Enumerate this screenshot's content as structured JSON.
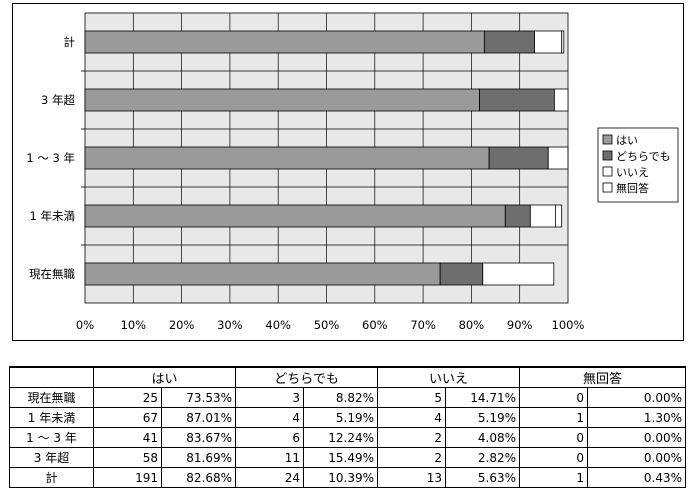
{
  "chart_data": {
    "type": "bar",
    "orientation": "horizontal",
    "stacked": true,
    "categories": [
      "計",
      "3 年超",
      "1 〜 3 年",
      "1 年未満",
      "現在無職"
    ],
    "series": [
      {
        "name": "はい",
        "values": [
          82.68,
          81.69,
          83.67,
          87.01,
          73.53
        ],
        "color": "#9a9a9a"
      },
      {
        "name": "どちらでも",
        "values": [
          10.39,
          15.49,
          12.24,
          5.19,
          8.82
        ],
        "color": "#6e6e6e"
      },
      {
        "name": "いいえ",
        "values": [
          5.63,
          2.82,
          4.08,
          5.19,
          14.71
        ],
        "color": "#ffffff"
      },
      {
        "name": "無回答",
        "values": [
          0.43,
          0.0,
          0.0,
          1.3,
          0.0
        ],
        "color": "#ffffff"
      }
    ],
    "xlim": [
      0,
      100
    ],
    "x_ticks": [
      "0%",
      "10%",
      "20%",
      "30%",
      "40%",
      "50%",
      "60%",
      "70%",
      "80%",
      "90%",
      "100%"
    ],
    "grid": true,
    "plot_background": "#e8e8e8",
    "legend_position": "right"
  },
  "table": {
    "headers": [
      "",
      "はい",
      "",
      "どちらでも",
      "",
      "いいえ",
      "",
      "無回答",
      ""
    ],
    "header_groups": [
      "はい",
      "どちらでも",
      "いいえ",
      "無回答"
    ],
    "rows": [
      {
        "label": "現在無職",
        "cells": [
          "25",
          "73.53%",
          "3",
          "8.82%",
          "5",
          "14.71%",
          "0",
          "0.00%"
        ]
      },
      {
        "label": "1 年未満",
        "cells": [
          "67",
          "87.01%",
          "4",
          "5.19%",
          "4",
          "5.19%",
          "1",
          "1.30%"
        ]
      },
      {
        "label": "1 〜 3 年",
        "cells": [
          "41",
          "83.67%",
          "6",
          "12.24%",
          "2",
          "4.08%",
          "0",
          "0.00%"
        ]
      },
      {
        "label": "3 年超",
        "cells": [
          "58",
          "81.69%",
          "11",
          "15.49%",
          "2",
          "2.82%",
          "0",
          "0.00%"
        ]
      },
      {
        "label": "計",
        "cells": [
          "191",
          "82.68%",
          "24",
          "10.39%",
          "13",
          "5.63%",
          "1",
          "0.43%"
        ]
      }
    ]
  }
}
